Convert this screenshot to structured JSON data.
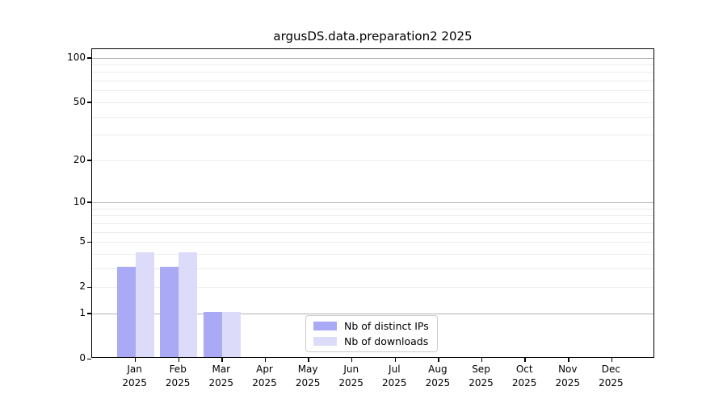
{
  "chart_data": {
    "type": "bar",
    "title": "argusDS.data.preparation2 2025",
    "categories": [
      "Jan",
      "Feb",
      "Mar",
      "Apr",
      "May",
      "Jun",
      "Jul",
      "Aug",
      "Sep",
      "Oct",
      "Nov",
      "Dec"
    ],
    "x_tick_year": "2025",
    "series": [
      {
        "name": "Nb of distinct IPs",
        "color": "#a9a9f5",
        "values": [
          3,
          3,
          1,
          0,
          0,
          0,
          0,
          0,
          0,
          0,
          0,
          0
        ]
      },
      {
        "name": "Nb of downloads",
        "color": "#dcdcfa",
        "values": [
          4,
          4,
          1,
          0,
          0,
          0,
          0,
          0,
          0,
          0,
          0,
          0
        ]
      }
    ],
    "yscale": "log1p",
    "ylabel": "",
    "xlabel": "",
    "y_ticks": [
      0,
      1,
      2,
      5,
      10,
      20,
      50,
      100
    ],
    "ylim": [
      0,
      114
    ],
    "grid": {
      "major_values": [
        1,
        10,
        100
      ],
      "minor_values": [
        2,
        3,
        4,
        5,
        6,
        7,
        8,
        9,
        20,
        30,
        40,
        50,
        60,
        70,
        80,
        90
      ],
      "major_color": "#b3b3b3",
      "minor_color": "#ececec"
    },
    "legend_position": "lower center"
  }
}
